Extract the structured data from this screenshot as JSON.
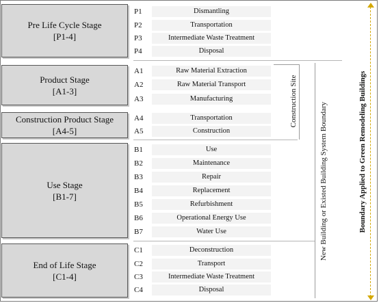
{
  "stages": [
    {
      "title": "Pre Life Cycle Stage",
      "range": "[P1-4]"
    },
    {
      "title": "Product Stage",
      "range": "[A1-3]"
    },
    {
      "title": "Construction Product Stage",
      "range": "[A4-5]"
    },
    {
      "title": "Use Stage",
      "range": "[B1-7]"
    },
    {
      "title": "End of Life Stage",
      "range": "[C1-4]"
    }
  ],
  "modules": [
    {
      "code": "P1",
      "label": "Dismantling"
    },
    {
      "code": "P2",
      "label": "Transportation"
    },
    {
      "code": "P3",
      "label": "Intermediate  Waste Treatment"
    },
    {
      "code": "P4",
      "label": "Disposal"
    },
    {
      "code": "A1",
      "label": "Raw Material Extraction"
    },
    {
      "code": "A2",
      "label": "Raw Material  Transport"
    },
    {
      "code": "A3",
      "label": "Manufacturing"
    },
    {
      "code": "A4",
      "label": "Transportation"
    },
    {
      "code": "A5",
      "label": "Construction"
    },
    {
      "code": "B1",
      "label": "Use"
    },
    {
      "code": "B2",
      "label": "Maintenance"
    },
    {
      "code": "B3",
      "label": "Repair"
    },
    {
      "code": "B4",
      "label": "Replacement"
    },
    {
      "code": "B5",
      "label": "Refurbishment"
    },
    {
      "code": "B6",
      "label": "Operational  Energy  Use"
    },
    {
      "code": "B7",
      "label": "Water Use"
    },
    {
      "code": "C1",
      "label": "Deconstruction"
    },
    {
      "code": "C2",
      "label": "Transport"
    },
    {
      "code": "C3",
      "label": "Intermediate  Waste Treatment"
    },
    {
      "code": "C4",
      "label": "Disposal"
    }
  ],
  "boundaries": {
    "construction_site": "Construction  Site",
    "system_boundary": "New Building  or Existed Building  System Boundary",
    "remodeling": "Boundary Applied  to Green Remodeling Buildings"
  }
}
